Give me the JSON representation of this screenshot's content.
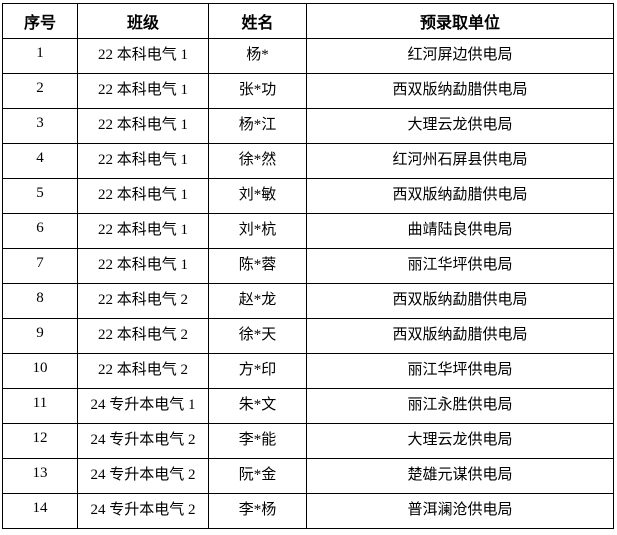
{
  "table": {
    "headers": [
      "序号",
      "班级",
      "姓名",
      "预录取单位"
    ],
    "rows": [
      [
        "1",
        "22 本科电气 1",
        "杨*",
        "红河屏边供电局"
      ],
      [
        "2",
        "22 本科电气 1",
        "张*功",
        "西双版纳勐腊供电局"
      ],
      [
        "3",
        "22 本科电气 1",
        "杨*江",
        "大理云龙供电局"
      ],
      [
        "4",
        "22 本科电气 1",
        "徐*然",
        "红河州石屏县供电局"
      ],
      [
        "5",
        "22 本科电气 1",
        "刘*敏",
        "西双版纳勐腊供电局"
      ],
      [
        "6",
        "22 本科电气 1",
        "刘*杭",
        "曲靖陆良供电局"
      ],
      [
        "7",
        "22 本科电气 1",
        "陈*蓉",
        "丽江华坪供电局"
      ],
      [
        "8",
        "22 本科电气 2",
        "赵*龙",
        "西双版纳勐腊供电局"
      ],
      [
        "9",
        "22 本科电气 2",
        "徐*天",
        "西双版纳勐腊供电局"
      ],
      [
        "10",
        "22 本科电气 2",
        "方*印",
        "丽江华坪供电局"
      ],
      [
        "11",
        "24 专升本电气 1",
        "朱*文",
        "丽江永胜供电局"
      ],
      [
        "12",
        "24 专升本电气 2",
        "李*能",
        "大理云龙供电局"
      ],
      [
        "13",
        "24 专升本电气 2",
        "阮*金",
        "楚雄元谋供电局"
      ],
      [
        "14",
        "24 专升本电气 2",
        "李*杨",
        "普洱澜沧供电局"
      ]
    ]
  }
}
